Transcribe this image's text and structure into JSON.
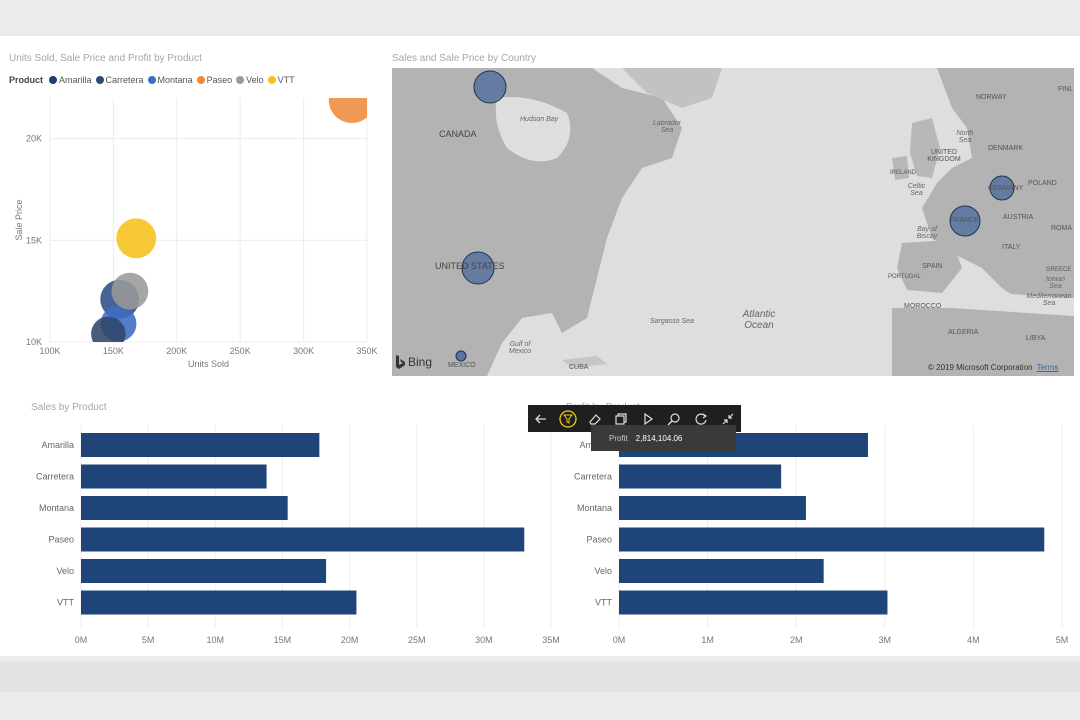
{
  "scatter_visual": {
    "title": "Units Sold, Sale Price and Profit by Product",
    "legend_title": "Product",
    "legend_items": [
      {
        "label": "Amarilla",
        "color": "#1f3f73"
      },
      {
        "label": "Carretera",
        "color": "#2f4a6e"
      },
      {
        "label": "Montana",
        "color": "#3a6fc4"
      },
      {
        "label": "Paseo",
        "color": "#ef8a3a"
      },
      {
        "label": "Velo",
        "color": "#9a9a9a"
      },
      {
        "label": "VTT",
        "color": "#f7c21a"
      }
    ]
  },
  "map_visual": {
    "title": "Sales and Sale Price by Country",
    "labels": {
      "canada": "CANADA",
      "hudson_bay": "Hudson Bay",
      "labrador_sea": "Labrador Sea",
      "united_states": "UNITED STATES",
      "gulf_of_mexico": "Gulf of Mexico",
      "mexico": "MEXICO",
      "cuba": "CUBA",
      "sargasso_sea": "Sargasso Sea",
      "atlantic_ocean": "Atlantic Ocean",
      "norway": "NORWAY",
      "north_sea": "North Sea",
      "denmark": "DENMARK",
      "united_kingdom": "UNITED KINGDOM",
      "ireland": "IRELAND",
      "celtic_sea": "Celtic Sea",
      "germany": "GERMANY",
      "poland": "POLAND",
      "france": "FRANCE",
      "austria": "AUSTRIA",
      "bay_of_biscay": "Bay of Biscay",
      "roma": "ROMA",
      "italy": "ITALY",
      "spain": "SPAIN",
      "portugal": "PORTUGAL",
      "greece": "GREECE",
      "ionian_sea": "Ionian Sea",
      "mediterranean_sea": "Mediterranean Sea",
      "morocco": "MOROCCO",
      "algeria": "ALGERIA",
      "libya": "LIBYA",
      "fin": "FINL"
    },
    "bing_label": "Bing",
    "copyright": "© 2019 Microsoft Corporation",
    "terms_link": "Terms"
  },
  "sales_visual": {
    "title": "Sales by Product"
  },
  "profit_visual": {
    "title": "Profit by Product"
  },
  "focus_toolbar": {
    "icons": [
      "back-arrow-icon",
      "filter-icon",
      "eraser-icon",
      "copy-icon",
      "play-icon",
      "zoom-icon",
      "refresh-icon",
      "collapse-icon"
    ]
  },
  "tooltip": {
    "label": "Profit",
    "value": "2,814,104.06"
  },
  "chart_data": [
    {
      "type": "scatter",
      "title": "Units Sold, Sale Price and Profit by Product",
      "xlabel": "Units Sold",
      "ylabel": "Sale Price",
      "xlim": [
        100000,
        350000
      ],
      "ylim": [
        10000,
        22000
      ],
      "x_ticks": [
        "100K",
        "150K",
        "200K",
        "250K",
        "300K",
        "350K"
      ],
      "y_ticks": [
        "10K",
        "15K",
        "20K"
      ],
      "grid": true,
      "legend": "top-left",
      "points": [
        {
          "series": "Amarilla",
          "x": 155000,
          "y": 12100,
          "profit": 2814104,
          "color": "#2e4f86"
        },
        {
          "series": "Carretera",
          "x": 146000,
          "y": 10400,
          "profit": 1826242,
          "color": "#31466a"
        },
        {
          "series": "Montana",
          "x": 154000,
          "y": 10900,
          "profit": 2114870,
          "color": "#3d6cc0"
        },
        {
          "series": "Paseo",
          "x": 338000,
          "y": 21900,
          "profit": 4797437,
          "color": "#ef8a3a"
        },
        {
          "series": "Velo",
          "x": 163000,
          "y": 12500,
          "profit": 2305992,
          "color": "#9a9a9a"
        },
        {
          "series": "VTT",
          "x": 168000,
          "y": 15100,
          "profit": 3034602,
          "color": "#f7c21a"
        }
      ]
    },
    {
      "type": "bar",
      "title": "Sales by Product",
      "categories": [
        "Amarilla",
        "Carretera",
        "Montana",
        "Paseo",
        "Velo",
        "VTT"
      ],
      "values": [
        17.75,
        13.82,
        15.39,
        33.01,
        18.25,
        20.51
      ],
      "unit": "M",
      "xlim": [
        0,
        35
      ],
      "x_ticks": [
        "0M",
        "5M",
        "10M",
        "15M",
        "20M",
        "25M",
        "30M",
        "35M"
      ],
      "color": "#1f4478"
    },
    {
      "type": "bar",
      "title": "Profit by Product",
      "categories": [
        "Amarilla",
        "Carretera",
        "Montana",
        "Paseo",
        "Velo",
        "VTT"
      ],
      "values": [
        2.81,
        1.83,
        2.11,
        4.8,
        2.31,
        3.03
      ],
      "unit": "M",
      "xlim": [
        0,
        5
      ],
      "x_ticks": [
        "0M",
        "1M",
        "2M",
        "3M",
        "4M",
        "5M"
      ],
      "color": "#1f4478"
    }
  ]
}
